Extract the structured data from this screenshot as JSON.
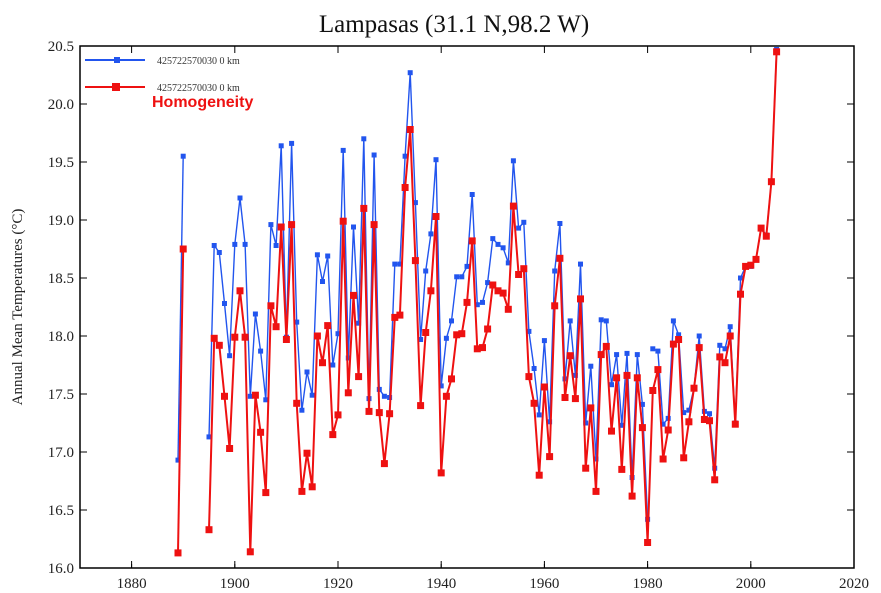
{
  "chart_data": {
    "type": "line",
    "title": "Lampasas (31.1 N,98.2 W)",
    "xlabel": "",
    "ylabel": "Annual Mean Temperatures (°C)",
    "xlim": [
      1870,
      2020
    ],
    "ylim": [
      16.0,
      20.5
    ],
    "xticks": [
      "1880",
      "1900",
      "1920",
      "1940",
      "1960",
      "1980",
      "2000",
      "2020"
    ],
    "yticks": [
      "16.0",
      "16.5",
      "17.0",
      "17.5",
      "18.0",
      "18.5",
      "19.0",
      "19.5",
      "20.0",
      "20.5"
    ],
    "grid": false,
    "legend": {
      "placement": "top-left",
      "entries": [
        {
          "label": "425722570030  0 km",
          "color": "#2255ee"
        },
        {
          "label": "425722570030  0 km",
          "color": "#ee1111"
        }
      ],
      "annotation": "Homogeneity"
    },
    "series": [
      {
        "name": "425722570030  0 km",
        "color": "#2255ee",
        "segments": [
          [
            [
              1889,
              16.93
            ],
            [
              1890,
              19.55
            ]
          ],
          [
            [
              1895,
              17.13
            ],
            [
              1896,
              18.78
            ],
            [
              1897,
              18.72
            ],
            [
              1898,
              18.28
            ],
            [
              1899,
              17.83
            ],
            [
              1900,
              18.79
            ],
            [
              1901,
              19.19
            ],
            [
              1902,
              18.79
            ],
            [
              1903,
              17.48
            ],
            [
              1904,
              18.19
            ],
            [
              1905,
              17.87
            ],
            [
              1906,
              17.45
            ],
            [
              1907,
              18.96
            ],
            [
              1908,
              18.78
            ],
            [
              1909,
              19.64
            ],
            [
              1910,
              17.99
            ],
            [
              1911,
              19.66
            ],
            [
              1912,
              18.12
            ],
            [
              1913,
              17.36
            ],
            [
              1914,
              17.69
            ],
            [
              1915,
              17.49
            ],
            [
              1916,
              18.7
            ],
            [
              1917,
              18.47
            ],
            [
              1918,
              18.69
            ],
            [
              1919,
              17.75
            ],
            [
              1920,
              18.02
            ],
            [
              1921,
              19.6
            ],
            [
              1922,
              17.81
            ],
            [
              1923,
              18.94
            ],
            [
              1924,
              18.11
            ],
            [
              1925,
              19.7
            ],
            [
              1926,
              17.46
            ],
            [
              1927,
              19.56
            ],
            [
              1928,
              17.54
            ],
            [
              1929,
              17.48
            ],
            [
              1930,
              17.47
            ],
            [
              1931,
              18.62
            ],
            [
              1932,
              18.62
            ],
            [
              1933,
              19.55
            ],
            [
              1934,
              20.27
            ],
            [
              1935,
              19.15
            ],
            [
              1936,
              17.97
            ],
            [
              1937,
              18.56
            ],
            [
              1938,
              18.88
            ],
            [
              1939,
              19.52
            ],
            [
              1940,
              17.57
            ],
            [
              1941,
              17.98
            ],
            [
              1942,
              18.13
            ],
            [
              1943,
              18.51
            ],
            [
              1944,
              18.51
            ],
            [
              1945,
              18.6
            ],
            [
              1946,
              19.22
            ],
            [
              1947,
              18.27
            ],
            [
              1948,
              18.29
            ],
            [
              1949,
              18.46
            ],
            [
              1950,
              18.84
            ],
            [
              1951,
              18.79
            ],
            [
              1952,
              18.76
            ],
            [
              1953,
              18.63
            ],
            [
              1954,
              19.51
            ],
            [
              1955,
              18.93
            ],
            [
              1956,
              18.98
            ],
            [
              1957,
              18.04
            ],
            [
              1958,
              17.72
            ],
            [
              1959,
              17.32
            ],
            [
              1960,
              17.96
            ],
            [
              1961,
              17.26
            ],
            [
              1962,
              18.56
            ],
            [
              1963,
              18.97
            ],
            [
              1964,
              17.63
            ],
            [
              1965,
              18.13
            ],
            [
              1966,
              17.66
            ],
            [
              1967,
              18.62
            ],
            [
              1968,
              17.25
            ],
            [
              1969,
              17.74
            ],
            [
              1970,
              16.94
            ],
            [
              1971,
              18.14
            ],
            [
              1972,
              18.13
            ],
            [
              1973,
              17.58
            ],
            [
              1974,
              17.84
            ],
            [
              1975,
              17.23
            ],
            [
              1976,
              17.85
            ],
            [
              1977,
              16.78
            ],
            [
              1978,
              17.84
            ],
            [
              1979,
              17.41
            ],
            [
              1980,
              16.42
            ]
          ],
          [
            [
              1981,
              17.89
            ],
            [
              1982,
              17.87
            ],
            [
              1983,
              17.24
            ],
            [
              1984,
              17.29
            ],
            [
              1985,
              18.13
            ],
            [
              1986,
              18.01
            ],
            [
              1987,
              17.34
            ],
            [
              1988,
              17.36
            ],
            [
              1989,
              17.55
            ],
            [
              1990,
              18.0
            ],
            [
              1991,
              17.35
            ],
            [
              1992,
              17.33
            ],
            [
              1993,
              16.86
            ],
            [
              1994,
              17.92
            ],
            [
              1995,
              17.89
            ],
            [
              1996,
              18.08
            ],
            [
              1997,
              17.25
            ],
            [
              1998,
              18.5
            ],
            [
              1999,
              18.6
            ],
            [
              2000,
              18.6
            ],
            [
              2001,
              18.66
            ],
            [
              2002,
              18.93
            ],
            [
              2003,
              18.87
            ],
            [
              2004,
              19.33
            ],
            [
              2005,
              20.47
            ]
          ]
        ]
      },
      {
        "name": "425722570030  0 km",
        "color": "#ee1111",
        "segments": [
          [
            [
              1889,
              16.13
            ],
            [
              1890,
              18.75
            ]
          ],
          [
            [
              1895,
              16.33
            ],
            [
              1896,
              17.98
            ],
            [
              1897,
              17.92
            ],
            [
              1898,
              17.48
            ],
            [
              1899,
              17.03
            ],
            [
              1900,
              17.99
            ],
            [
              1901,
              18.39
            ],
            [
              1902,
              17.99
            ],
            [
              1903,
              16.14
            ],
            [
              1904,
              17.49
            ],
            [
              1905,
              17.17
            ],
            [
              1906,
              16.65
            ],
            [
              1907,
              18.26
            ],
            [
              1908,
              18.08
            ],
            [
              1909,
              18.94
            ],
            [
              1910,
              17.97
            ],
            [
              1911,
              18.96
            ],
            [
              1912,
              17.42
            ],
            [
              1913,
              16.66
            ],
            [
              1914,
              16.99
            ],
            [
              1915,
              16.7
            ],
            [
              1916,
              18.0
            ],
            [
              1917,
              17.77
            ],
            [
              1918,
              18.09
            ],
            [
              1919,
              17.15
            ],
            [
              1920,
              17.32
            ],
            [
              1921,
              18.99
            ],
            [
              1922,
              17.51
            ],
            [
              1923,
              18.35
            ],
            [
              1924,
              17.65
            ],
            [
              1925,
              19.1
            ],
            [
              1926,
              17.35
            ],
            [
              1927,
              18.96
            ],
            [
              1928,
              17.34
            ],
            [
              1929,
              16.9
            ],
            [
              1930,
              17.33
            ],
            [
              1931,
              18.16
            ],
            [
              1932,
              18.18
            ],
            [
              1933,
              19.28
            ],
            [
              1934,
              19.78
            ],
            [
              1935,
              18.65
            ],
            [
              1936,
              17.4
            ],
            [
              1937,
              18.03
            ],
            [
              1938,
              18.39
            ],
            [
              1939,
              19.03
            ],
            [
              1940,
              16.82
            ],
            [
              1941,
              17.48
            ],
            [
              1942,
              17.63
            ],
            [
              1943,
              18.01
            ],
            [
              1944,
              18.02
            ],
            [
              1945,
              18.29
            ],
            [
              1946,
              18.82
            ],
            [
              1947,
              17.89
            ],
            [
              1948,
              17.9
            ],
            [
              1949,
              18.06
            ],
            [
              1950,
              18.44
            ],
            [
              1951,
              18.39
            ],
            [
              1952,
              18.37
            ],
            [
              1953,
              18.23
            ],
            [
              1954,
              19.12
            ],
            [
              1955,
              18.53
            ],
            [
              1956,
              18.58
            ],
            [
              1957,
              17.65
            ],
            [
              1958,
              17.42
            ],
            [
              1959,
              16.8
            ],
            [
              1960,
              17.56
            ],
            [
              1961,
              16.96
            ],
            [
              1962,
              18.26
            ],
            [
              1963,
              18.67
            ],
            [
              1964,
              17.47
            ],
            [
              1965,
              17.83
            ],
            [
              1966,
              17.46
            ],
            [
              1967,
              18.32
            ],
            [
              1968,
              16.86
            ],
            [
              1969,
              17.38
            ],
            [
              1970,
              16.66
            ],
            [
              1971,
              17.84
            ],
            [
              1972,
              17.91
            ],
            [
              1973,
              17.18
            ],
            [
              1974,
              17.64
            ],
            [
              1975,
              16.85
            ],
            [
              1976,
              17.66
            ],
            [
              1977,
              16.62
            ],
            [
              1978,
              17.64
            ],
            [
              1979,
              17.21
            ],
            [
              1980,
              16.22
            ],
            [
              1981,
              17.53
            ],
            [
              1982,
              17.71
            ],
            [
              1983,
              16.94
            ],
            [
              1984,
              17.19
            ],
            [
              1985,
              17.93
            ],
            [
              1986,
              17.97
            ],
            [
              1987,
              16.95
            ],
            [
              1988,
              17.26
            ],
            [
              1989,
              17.55
            ],
            [
              1990,
              17.9
            ],
            [
              1991,
              17.28
            ],
            [
              1992,
              17.27
            ],
            [
              1993,
              16.76
            ],
            [
              1994,
              17.82
            ],
            [
              1995,
              17.77
            ],
            [
              1996,
              18.0
            ],
            [
              1997,
              17.24
            ],
            [
              1998,
              18.36
            ],
            [
              1999,
              18.6
            ],
            [
              2000,
              18.61
            ],
            [
              2001,
              18.66
            ],
            [
              2002,
              18.93
            ],
            [
              2003,
              18.86
            ],
            [
              2004,
              19.33
            ],
            [
              2005,
              20.45
            ]
          ]
        ]
      }
    ]
  }
}
